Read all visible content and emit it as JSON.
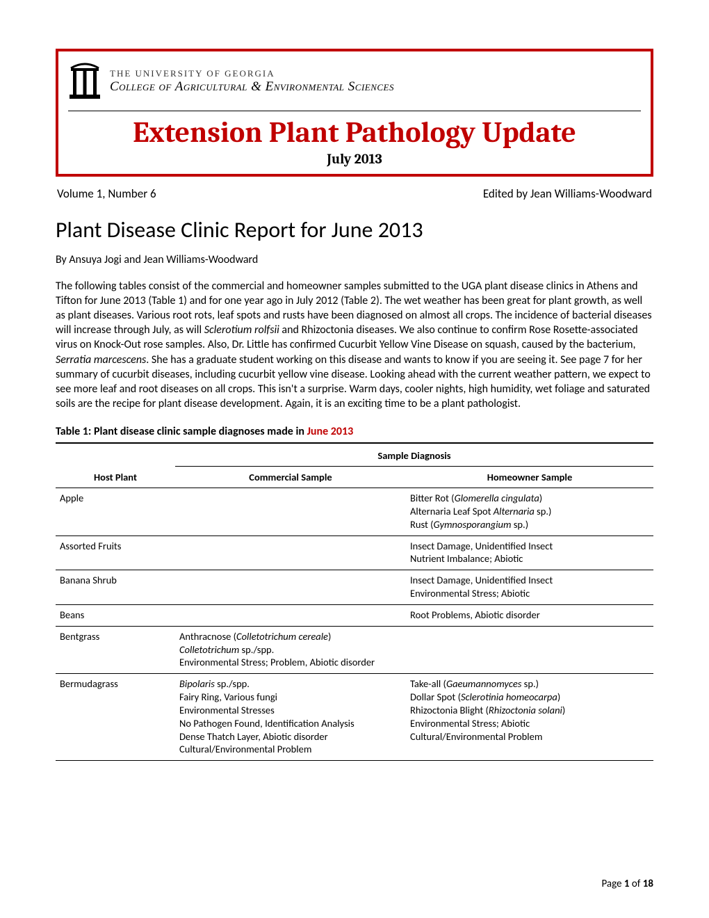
{
  "header": {
    "univ_line1": "THE UNIVERSITY OF GEORGIA",
    "univ_line2_a": "College of ",
    "univ_line2_b": "Agricultural ",
    "univ_line2_amp": "&",
    "univ_line2_c": " Environmental Sciences",
    "main_title": "Extension Plant Pathology Update",
    "main_date": "July 2013"
  },
  "meta": {
    "volume": "Volume 1, Number 6",
    "editor": "Edited by Jean Williams-Woodward"
  },
  "section": {
    "title": "Plant Disease Clinic Report for June 2013",
    "byline": "By Ansuya Jogi and Jean Williams-Woodward"
  },
  "body": {
    "p1_a": "The following tables consist of the commercial and homeowner samples submitted to the UGA plant disease clinics in Athens and Tifton for June 2013 (Table 1) and for one year ago in July 2012 (Table 2). The wet weather has been great for plant growth, as well as plant diseases. Various root rots, leaf spots and rusts have been diagnosed on almost all crops. The incidence of bacterial diseases will increase through July, as will ",
    "p1_i1": "Sclerotium rolfsii",
    "p1_b": " and Rhizoctonia diseases. We also continue to confirm Rose Rosette-associated virus on Knock-Out rose samples.  Also, Dr. Little has confirmed Cucurbit Yellow Vine Disease on squash, caused by the bacterium, ",
    "p1_i2": "Serratia marcescens",
    "p1_c": ". She has a graduate student working on this disease and wants to know if you are seeing it. See page 7 for her summary of cucurbit diseases, including cucurbit yellow vine disease. Looking ahead with the current weather pattern, we expect to see more leaf and root diseases on all crops. This isn't a surprise. Warm days, cooler nights, high humidity, wet foliage and saturated soils are the recipe for plant disease development. Again, it is an exciting time to be a plant pathologist."
  },
  "table1": {
    "title_a": "Table 1:  Plant disease clinic sample diagnoses made in ",
    "title_b": "June 2013",
    "headers": {
      "host": "Host Plant",
      "group": "Sample Diagnosis",
      "commercial": "Commercial Sample",
      "homeowner": "Homeowner Sample"
    },
    "rows": [
      {
        "host": "Apple",
        "commercial": [],
        "homeowner": [
          {
            "t": "Bitter Rot (",
            "i": "Glomerella cingulata",
            "t2": ")"
          },
          {
            "t": "Alternaria Leaf Spot ",
            "i": "Alternaria",
            "t2": " sp.)"
          },
          {
            "t": "Rust (",
            "i": "Gymnosporangium",
            "t2": " sp.)"
          }
        ]
      },
      {
        "host": "Assorted Fruits",
        "commercial": [],
        "homeowner": [
          {
            "t": "Insect Damage, Unidentified Insect"
          },
          {
            "t": "Nutrient Imbalance; Abiotic"
          }
        ]
      },
      {
        "host": "Banana Shrub",
        "commercial": [],
        "homeowner": [
          {
            "t": "Insect Damage, Unidentified Insect"
          },
          {
            "t": "Environmental Stress; Abiotic"
          }
        ]
      },
      {
        "host": "Beans",
        "commercial": [],
        "homeowner": [
          {
            "t": "Root Problems, Abiotic disorder"
          }
        ]
      },
      {
        "host": "Bentgrass",
        "commercial": [
          {
            "t": "Anthracnose (",
            "i": "Colletotrichum cereale",
            "t2": ")"
          },
          {
            "i": "Colletotrichum",
            "t2": " sp./spp."
          },
          {
            "t": "Environmental Stress; Problem, Abiotic disorder"
          }
        ],
        "homeowner": []
      },
      {
        "host": "Bermudagrass",
        "commercial": [
          {
            "i": "Bipolaris",
            "t2": " sp./spp."
          },
          {
            "t": "Fairy Ring, Various fungi"
          },
          {
            "t": "Environmental Stresses"
          },
          {
            "t": "No Pathogen Found, Identification Analysis"
          },
          {
            "t": "Dense Thatch Layer, Abiotic disorder"
          },
          {
            "t": "Cultural/Environmental Problem"
          }
        ],
        "homeowner": [
          {
            "t": "Take-all (",
            "i": "Gaeumannomyces",
            "t2": " sp.)"
          },
          {
            "t": "Dollar Spot (",
            "i": "Sclerotinia homeocarpa",
            "t2": ")"
          },
          {
            "t": "Rhizoctonia Blight (",
            "i": "Rhizoctonia solani",
            "t2": ")"
          },
          {
            "t": "Environmental Stress; Abiotic"
          },
          {
            "t": "Cultural/Environmental Problem"
          }
        ]
      }
    ]
  },
  "footer": {
    "prefix": "Page ",
    "num": "1",
    "of": " of ",
    "total": "18"
  },
  "colors": {
    "accent_red": "#c00000",
    "text": "#000000",
    "bg": "#ffffff"
  }
}
